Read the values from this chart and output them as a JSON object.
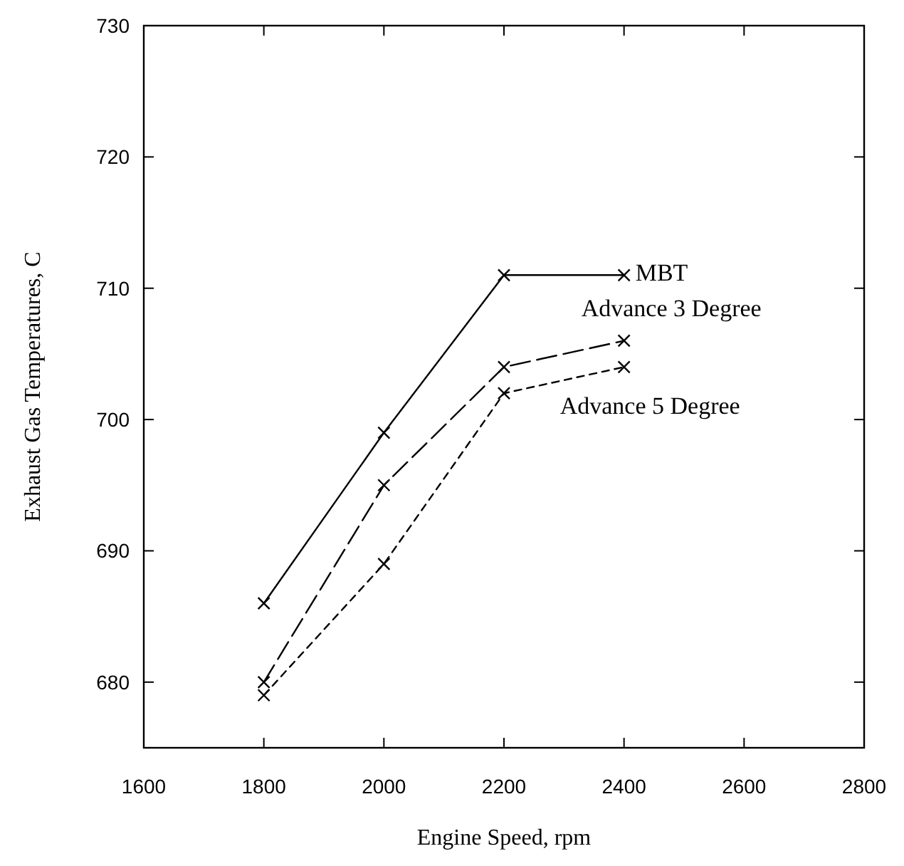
{
  "chart_data": {
    "type": "line",
    "xlabel": "Engine Speed, rpm",
    "ylabel": "Exhaust Gas Temperatures, C",
    "x": [
      1800,
      2000,
      2200,
      2400
    ],
    "series": [
      {
        "name": "MBT",
        "color": "#000000",
        "values": [
          686,
          699,
          711,
          711
        ],
        "line_style": "solid"
      },
      {
        "name": "Advance 3 Degree",
        "color": "#000000",
        "values": [
          680,
          695,
          704,
          706
        ],
        "line_style": "dashed"
      },
      {
        "name": "Advance 5 Degree",
        "color": "#000000",
        "values": [
          679,
          689,
          702,
          704
        ],
        "line_style": "dotted"
      }
    ],
    "xlim": [
      1600,
      2800
    ],
    "xticks": [
      1600,
      1800,
      2000,
      2200,
      2400,
      2600,
      2800
    ],
    "ylim": [
      675,
      730
    ],
    "yticks": [
      680,
      690,
      700,
      710,
      720,
      730
    ],
    "grid": false,
    "marker": "cross"
  }
}
